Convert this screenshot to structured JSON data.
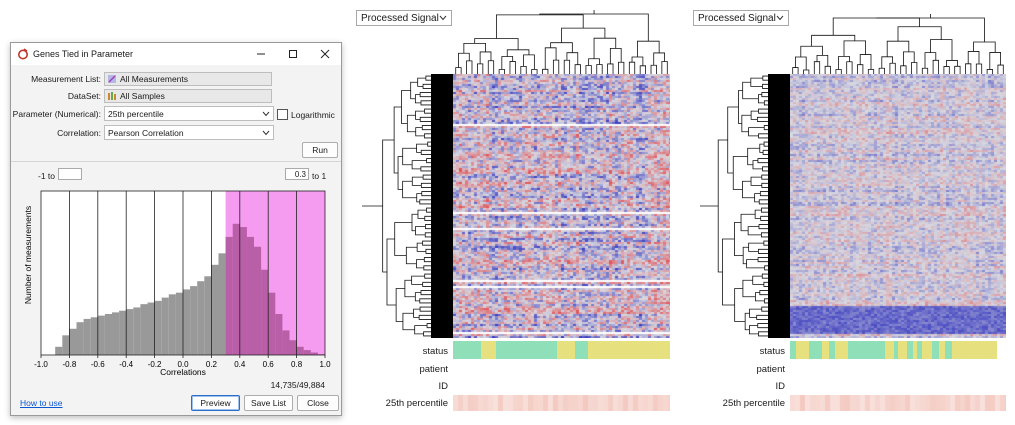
{
  "dialog": {
    "title": "Genes Tied in Parameter",
    "measurement_list_label": "Measurement List:",
    "measurement_list_value": "All Measurements",
    "dataset_label": "DataSet:",
    "dataset_value": "All Samples",
    "parameter_label": "Parameter (Numerical):",
    "parameter_value": "25th percentile",
    "logarithmic_label": "Logarithmic",
    "logarithmic_checked": false,
    "correlation_label": "Correlation:",
    "correlation_value": "Pearson Correlation",
    "run_label": "Run",
    "range_low_prefix": "-1 to",
    "range_low_value": "",
    "range_high_value": "0.3",
    "range_high_suffix": "to 1",
    "count_text": "14,735/49,884",
    "how_to_use": "How to use",
    "preview_label": "Preview",
    "save_list_label": "Save List",
    "close_label": "Close"
  },
  "chart_data": {
    "type": "bar",
    "title": "",
    "xlabel": "Correlations",
    "ylabel": "Number of measurements",
    "xlim": [
      -1.0,
      1.0
    ],
    "x_ticks": [
      "-1.0",
      "-0.8",
      "-0.6",
      "-0.4",
      "-0.2",
      "0.0",
      "0.2",
      "0.4",
      "0.6",
      "0.8",
      "1.0"
    ],
    "highlight_range": [
      0.3,
      1.0
    ],
    "highlight_color": "#f59bf0",
    "bar_color": "#999999",
    "highlight_bar_color": "#b95fa8",
    "bin_centers": [
      -0.875,
      -0.825,
      -0.775,
      -0.725,
      -0.675,
      -0.625,
      -0.575,
      -0.525,
      -0.475,
      -0.425,
      -0.375,
      -0.325,
      -0.275,
      -0.225,
      -0.175,
      -0.125,
      -0.075,
      -0.025,
      0.025,
      0.075,
      0.125,
      0.175,
      0.225,
      0.275,
      0.325,
      0.375,
      0.425,
      0.475,
      0.525,
      0.575,
      0.625,
      0.675,
      0.725,
      0.775,
      0.825,
      0.875,
      0.925,
      0.975
    ],
    "values": [
      0.05,
      0.12,
      0.16,
      0.2,
      0.22,
      0.23,
      0.24,
      0.25,
      0.26,
      0.27,
      0.28,
      0.29,
      0.31,
      0.32,
      0.33,
      0.35,
      0.37,
      0.38,
      0.4,
      0.42,
      0.45,
      0.48,
      0.55,
      0.62,
      0.72,
      0.8,
      0.78,
      0.72,
      0.66,
      0.52,
      0.38,
      0.25,
      0.15,
      0.09,
      0.05,
      0.03,
      0.015,
      0.005
    ],
    "ymax": 1.0
  },
  "panel_left": {
    "select_label": "Processed Signal",
    "annotations": [
      "status",
      "patient",
      "ID",
      "25th percentile"
    ],
    "status_colors": [
      "#8fe0b8",
      "#e6e07e",
      "#8fe0b8",
      "#e6e07e",
      "#8fe0b8",
      "#e6e07e"
    ],
    "status_widths": [
      0.13,
      0.07,
      0.28,
      0.08,
      0.06,
      0.38
    ]
  },
  "panel_right": {
    "select_label": "Processed Signal",
    "annotations": [
      "status",
      "patient",
      "ID",
      "25th percentile"
    ],
    "status_colors": [
      "#8fe0b8",
      "#e6e07e",
      "#8fe0b8",
      "#e6e07e",
      "#8fe0b8",
      "#e6e07e",
      "#8fe0b8",
      "#e6e07e",
      "#8fe0b8",
      "#e6e07e",
      "#8fe0b8",
      "#e6e07e",
      "#8fe0b8",
      "#e6e07e",
      "#8fe0b8",
      "#e6e07e",
      "#8fe0b8",
      "#e6e07e"
    ],
    "status_widths": [
      0.03,
      0.06,
      0.06,
      0.03,
      0.03,
      0.06,
      0.17,
      0.04,
      0.02,
      0.04,
      0.03,
      0.02,
      0.02,
      0.05,
      0.03,
      0.03,
      0.03,
      0.21
    ]
  },
  "colors": {
    "heat_low": "#3d3fc0",
    "heat_mid": "#d8d8e0",
    "heat_high": "#e0565c",
    "percentile_bar": "#f3c9c0"
  }
}
